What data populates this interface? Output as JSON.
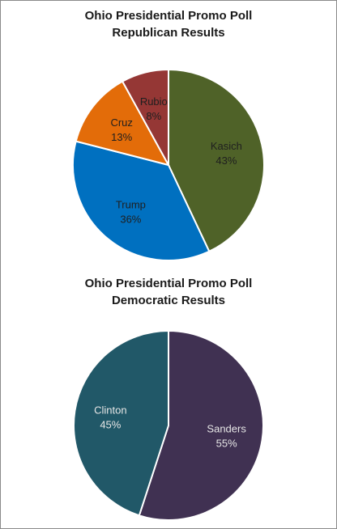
{
  "chart_data": [
    {
      "type": "pie",
      "title": [
        "Ohio Presidential Promo Poll",
        "Republican Results"
      ],
      "slices": [
        {
          "label": "Kasich",
          "value": 43,
          "value_label": "43%",
          "color": "#4f6228",
          "text_color": "#1f1f1f"
        },
        {
          "label": "Trump",
          "value": 36,
          "value_label": "36%",
          "color": "#0070c0",
          "text_color": "#1f1f1f"
        },
        {
          "label": "Cruz",
          "value": 13,
          "value_label": "13%",
          "color": "#e36c09",
          "text_color": "#1f1f1f"
        },
        {
          "label": "Rubio",
          "value": 8,
          "value_label": "8%",
          "color": "#953735",
          "text_color": "#1f1f1f"
        }
      ],
      "start": "12 o'clock",
      "direction": "clockwise",
      "legend": "none"
    },
    {
      "type": "pie",
      "title": [
        "Ohio Presidential Promo Poll",
        "Democratic Results"
      ],
      "slices": [
        {
          "label": "Sanders",
          "value": 55,
          "value_label": "55%",
          "color": "#403152",
          "text_color": "#e6e6e6"
        },
        {
          "label": "Clinton",
          "value": 45,
          "value_label": "45%",
          "color": "#215868",
          "text_color": "#e6e6e6"
        }
      ],
      "start": "12 o'clock",
      "direction": "clockwise",
      "legend": "none"
    }
  ]
}
